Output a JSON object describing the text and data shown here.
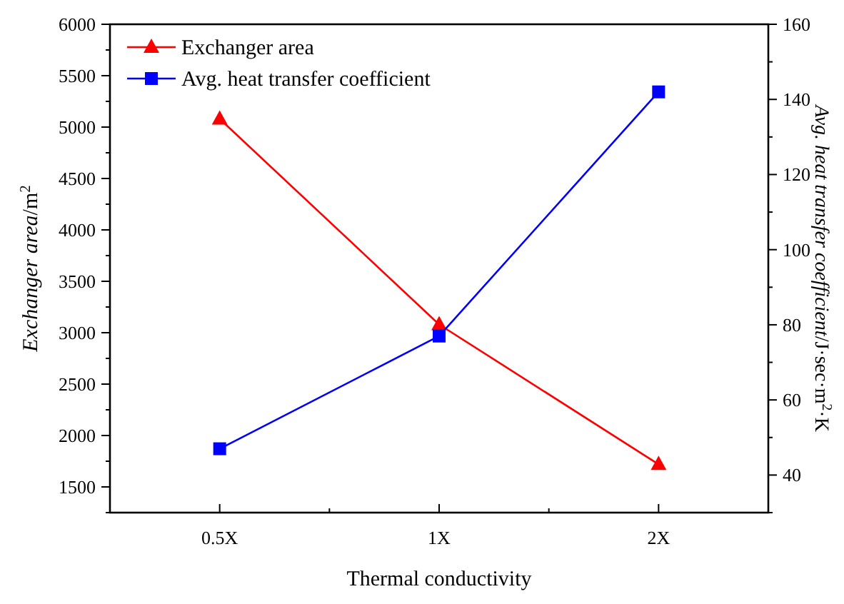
{
  "chart_data": {
    "type": "line",
    "xlabel": "Thermal conductivity",
    "ylabel": "Exchanger area/m$^{2}$",
    "y2label": "Avg. heat transfer coefficient/J·sec·m$^{2}$·K",
    "categories": [
      "0.5X",
      "1X",
      "2X"
    ],
    "series": [
      {
        "name": "Exchanger area",
        "color": "#ff0000",
        "marker": "triangle",
        "values": [
          5080,
          3080,
          1720
        ]
      },
      {
        "name": "Avg. heat transfer coefficient",
        "color": "#0000ff",
        "marker": "square",
        "axis": "y2",
        "values": [
          47,
          77,
          142
        ]
      }
    ],
    "ylim": [
      1250,
      6000
    ],
    "yticks": [
      1500,
      2000,
      2500,
      3000,
      3500,
      4000,
      4500,
      5000,
      5500,
      6000
    ],
    "y2lim": [
      30,
      160
    ],
    "y2ticks": [
      40,
      60,
      80,
      100,
      120,
      140,
      160
    ],
    "legend": "top left",
    "grid": false,
    "line_style": "solid"
  }
}
